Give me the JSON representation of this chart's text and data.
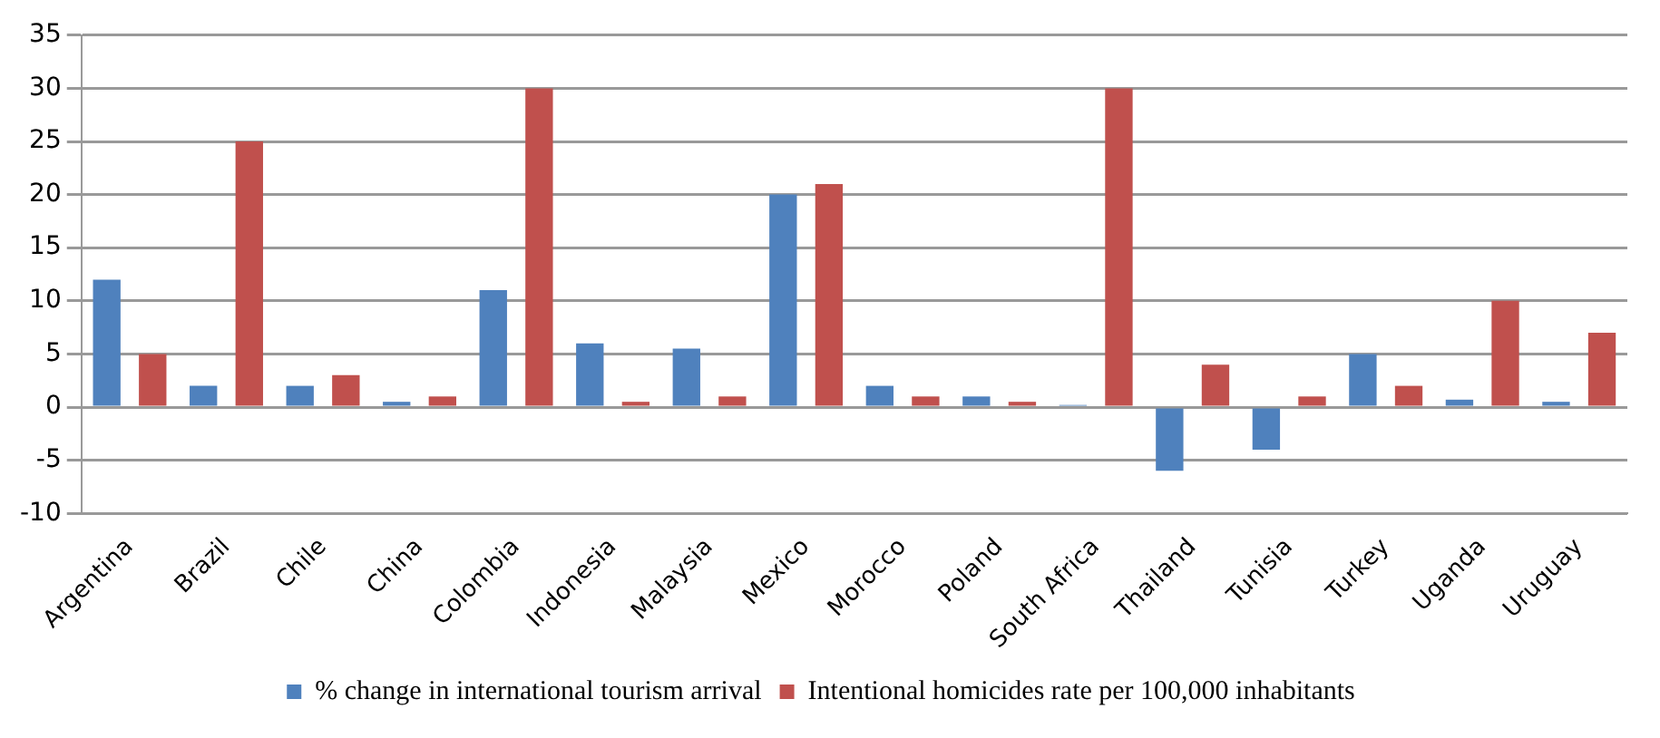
{
  "chart_data": {
    "type": "bar",
    "categories": [
      "Argentina",
      "Brazil",
      "Chile",
      "China",
      "Colombia",
      "Indonesia",
      "Malaysia",
      "Mexico",
      "Morocco",
      "Poland",
      "South Africa",
      "Thailand",
      "Tunisia",
      "Turkey",
      "Uganda",
      "Uruguay"
    ],
    "series": [
      {
        "name": "% change in international tourism arrival",
        "color": "#4f81bd",
        "values": [
          12,
          2,
          2,
          0.5,
          11,
          6,
          5.5,
          20,
          2,
          1,
          0.2,
          -6,
          -4,
          5,
          0.7,
          0.5
        ]
      },
      {
        "name": "Intentional homicides rate per 100,000 inhabitants",
        "color": "#c0504d",
        "values": [
          5,
          25,
          3,
          1,
          30,
          0.5,
          1,
          21,
          1,
          0.5,
          30,
          4,
          1,
          2,
          10,
          7
        ]
      }
    ],
    "ylim": [
      -10,
      35
    ],
    "yticks": [
      -10,
      -5,
      0,
      5,
      10,
      15,
      20,
      25,
      30,
      35
    ],
    "grid": "y",
    "legend": "bottom"
  }
}
